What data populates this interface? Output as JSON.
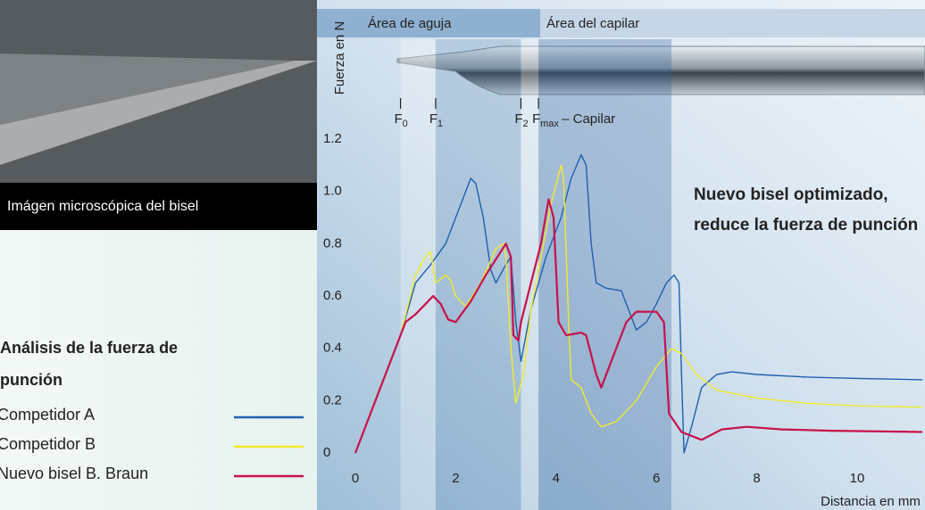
{
  "photo_caption": "Imágen microscópica del bisel",
  "section_title": "Análisis de la fuerza de punción",
  "chart_data": {
    "type": "line",
    "y_label": "Fuerza en N",
    "x_label": "Distancia en mm",
    "annotation": "Nuevo bisel optimizado, reduce la fuerza de punción",
    "zones": [
      "Área de aguja",
      "Área del capilar"
    ],
    "markers": [
      {
        "label": "F",
        "sub": "0",
        "x": 0.9
      },
      {
        "label": "F",
        "sub": "1",
        "x": 1.6
      },
      {
        "label": "F",
        "sub": "2",
        "x": 3.3
      },
      {
        "label": "F",
        "sub": "max",
        "x": 3.65
      }
    ],
    "capillary_label": "– Capilar",
    "xlim": [
      0,
      11.35
    ],
    "ylim": [
      0,
      1.2
    ],
    "xticks": [
      0,
      2,
      4,
      6,
      8,
      10
    ],
    "yticks": [
      0,
      0.2,
      0.4,
      0.6,
      0.8,
      {
        "value": 1,
        "label": "1.0"
      },
      1.2
    ],
    "grid": false,
    "legend": "left",
    "series": [
      {
        "name": "Competidor A",
        "color": "#1f5fae",
        "x": [
          0,
          0.5,
          0.9,
          1.2,
          1.5,
          1.8,
          2.0,
          2.2,
          2.3,
          2.4,
          2.55,
          2.7,
          2.8,
          3.0,
          3.1,
          3.2,
          3.3,
          3.5,
          3.8,
          4.1,
          4.3,
          4.5,
          4.6,
          4.7,
          4.8,
          5.0,
          5.3,
          5.5,
          5.6,
          5.8,
          6.0,
          6.2,
          6.35,
          6.45,
          6.5,
          6.55,
          6.7,
          6.9,
          7.2,
          7.5,
          8.0,
          9.0,
          10.0,
          11.3
        ],
        "values": [
          0,
          0.25,
          0.45,
          0.65,
          0.72,
          0.8,
          0.9,
          1.0,
          1.05,
          1.03,
          0.9,
          0.7,
          0.65,
          0.72,
          0.75,
          0.5,
          0.35,
          0.55,
          0.75,
          0.9,
          1.05,
          1.14,
          1.1,
          0.8,
          0.65,
          0.63,
          0.62,
          0.52,
          0.47,
          0.5,
          0.57,
          0.65,
          0.68,
          0.65,
          0.3,
          0,
          0.1,
          0.25,
          0.3,
          0.31,
          0.3,
          0.29,
          0.285,
          0.28
        ]
      },
      {
        "name": "Competidor B",
        "color": "#f2ea2c",
        "x": [
          0,
          0.5,
          0.9,
          1.2,
          1.4,
          1.5,
          1.6,
          1.8,
          1.9,
          2.0,
          2.2,
          2.5,
          2.8,
          2.95,
          3.0,
          3.1,
          3.2,
          3.35,
          3.5,
          3.7,
          3.9,
          4.1,
          4.15,
          4.25,
          4.3,
          4.5,
          4.7,
          4.9,
          5.2,
          5.6,
          6.0,
          6.3,
          6.5,
          6.8,
          7.2,
          8.0,
          9.0,
          10.0,
          11.3
        ],
        "values": [
          0,
          0.25,
          0.45,
          0.68,
          0.75,
          0.77,
          0.65,
          0.68,
          0.66,
          0.6,
          0.56,
          0.65,
          0.78,
          0.8,
          0.75,
          0.4,
          0.19,
          0.3,
          0.55,
          0.75,
          0.95,
          1.1,
          1.05,
          0.5,
          0.28,
          0.25,
          0.15,
          0.1,
          0.12,
          0.2,
          0.33,
          0.4,
          0.38,
          0.3,
          0.24,
          0.21,
          0.19,
          0.18,
          0.175
        ]
      },
      {
        "name": "Nuevo bisel B. Braun",
        "color": "#c8114a",
        "x": [
          0,
          0.5,
          0.9,
          1.0,
          1.2,
          1.4,
          1.55,
          1.7,
          1.85,
          2.0,
          2.3,
          2.6,
          2.9,
          3.0,
          3.1,
          3.15,
          3.25,
          3.3,
          3.5,
          3.7,
          3.85,
          3.95,
          4.05,
          4.2,
          4.5,
          4.6,
          4.8,
          4.9,
          5.1,
          5.4,
          5.6,
          6.0,
          6.15,
          6.25,
          6.5,
          6.9,
          7.3,
          7.8,
          8.5,
          9.5,
          11.3
        ],
        "values": [
          0,
          0.25,
          0.45,
          0.5,
          0.53,
          0.57,
          0.6,
          0.57,
          0.51,
          0.5,
          0.58,
          0.68,
          0.77,
          0.8,
          0.75,
          0.45,
          0.43,
          0.5,
          0.65,
          0.8,
          0.97,
          0.9,
          0.5,
          0.45,
          0.46,
          0.45,
          0.3,
          0.25,
          0.35,
          0.5,
          0.54,
          0.54,
          0.5,
          0.15,
          0.08,
          0.05,
          0.09,
          0.1,
          0.09,
          0.085,
          0.08
        ]
      }
    ]
  }
}
